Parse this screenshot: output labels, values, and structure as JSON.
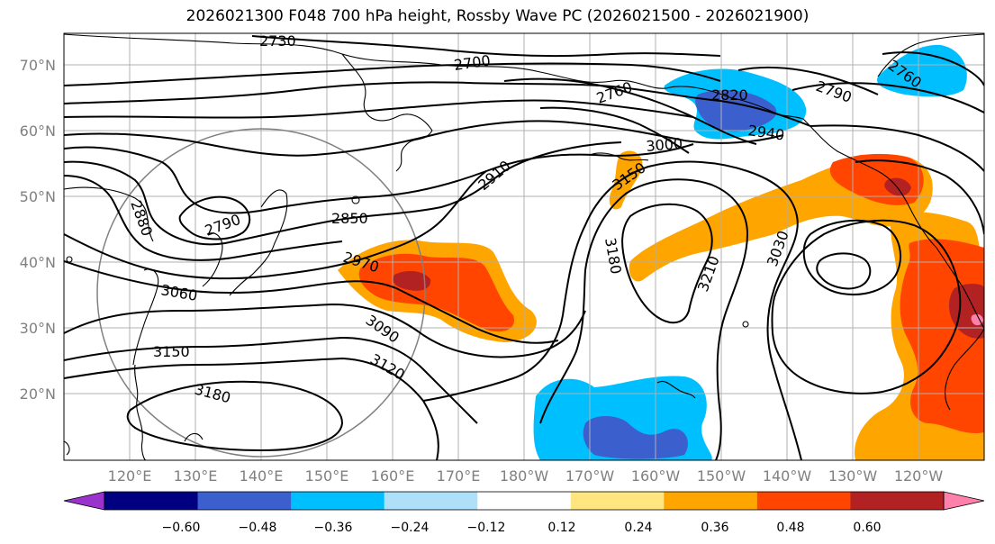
{
  "title": "2026021300 F048 700 hPa height, Rossby Wave PC (2026021500 - 2026021900)",
  "lat_labels": [
    "70°N",
    "60°N",
    "50°N",
    "40°N",
    "30°N",
    "20°N"
  ],
  "lon_labels": [
    "120°E",
    "130°E",
    "140°E",
    "150°E",
    "160°E",
    "170°E",
    "180°W",
    "170°W",
    "160°W",
    "150°W",
    "140°W",
    "130°W",
    "120°W"
  ],
  "contour_labels": [
    "2730",
    "2700",
    "2760",
    "2820",
    "2940",
    "2790",
    "2760",
    "3000",
    "2910",
    "2880",
    "2790",
    "2850",
    "2970",
    "3060",
    "3090",
    "3150",
    "3120",
    "3180",
    "3150",
    "3180",
    "3210",
    "3030"
  ],
  "colorbar": {
    "ticks": [
      "−0.60",
      "−0.48",
      "−0.36",
      "−0.24",
      "−0.12",
      "0.12",
      "0.24",
      "0.36",
      "0.48",
      "0.60"
    ],
    "colors": [
      "#9933cc",
      "#000080",
      "#3b5fcd",
      "#00bfff",
      "#aee0fa",
      "#ffffff",
      "#ffe680",
      "#ffa500",
      "#ff4500",
      "#b22222",
      "#ff80aa"
    ]
  }
}
